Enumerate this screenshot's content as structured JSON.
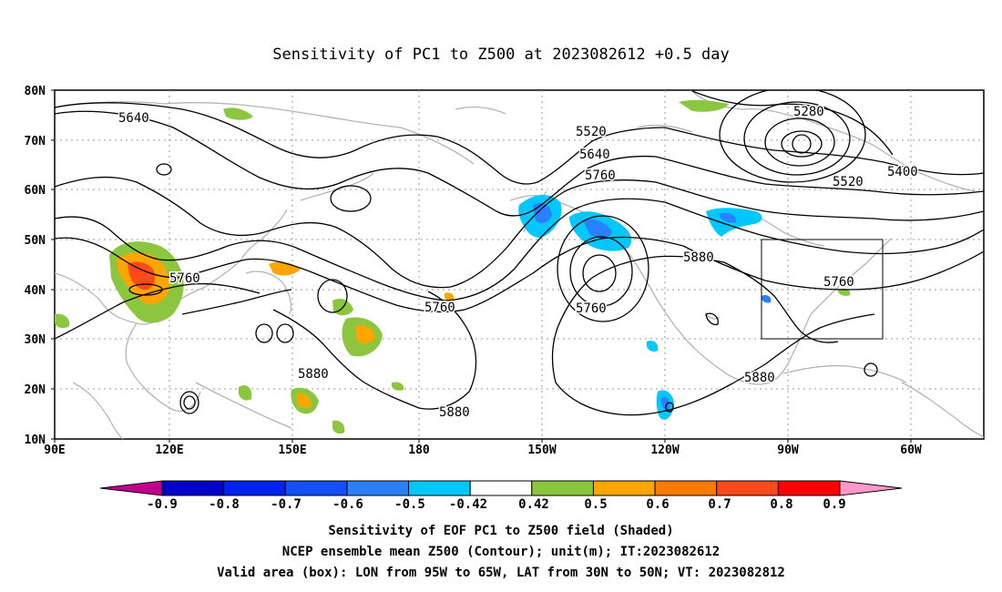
{
  "title": "Sensitivity of PC1 to Z500 at 2023082612 +0.5 day",
  "map": {
    "lat_labels": [
      "80N",
      "70N",
      "60N",
      "50N",
      "40N",
      "30N",
      "20N",
      "10N"
    ],
    "lon_labels": [
      "90E",
      "120E",
      "150E",
      "180",
      "150W",
      "120W",
      "90W",
      "60W"
    ],
    "contour_labels": [
      "5640",
      "5520",
      "5640",
      "5760",
      "5280",
      "5400",
      "5520",
      "5760",
      "5760",
      "5760",
      "5880",
      "5760",
      "5880",
      "5880",
      "5880"
    ],
    "box": {
      "lon_from": "95W",
      "lon_to": "65W",
      "lat_from": "30N",
      "lat_to": "50N"
    }
  },
  "colorbar": {
    "labels": [
      "-0.9",
      "-0.8",
      "-0.7",
      "-0.6",
      "-0.5",
      "-0.42",
      "0.42",
      "0.5",
      "0.6",
      "0.7",
      "0.8",
      "0.9"
    ],
    "colors": [
      "#0000c8",
      "#0022ee",
      "#1450ff",
      "#2a80ff",
      "#00c8ff",
      "#ffffff",
      "#8cc63f",
      "#ffa500",
      "#ff7a00",
      "#ff4a1a",
      "#ff0000"
    ],
    "low_extend_color": "#c0008c",
    "high_extend_color": "#ff99cc"
  },
  "captions": [
    "Sensitivity of EOF PC1 to Z500 field (Shaded)",
    "NCEP ensemble mean Z500 (Contour); unit(m); IT:2023082612",
    "Valid area (box): LON from 95W to 65W, LAT from 30N to 50N; VT: 2023082812"
  ]
}
